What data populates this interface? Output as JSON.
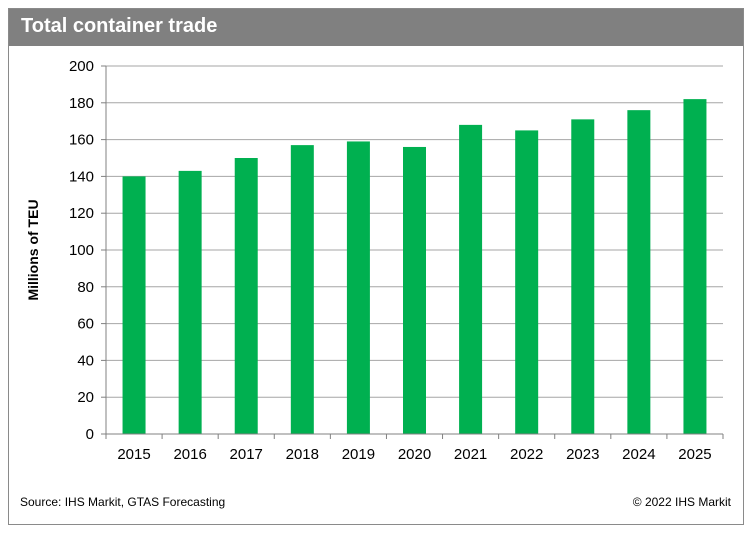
{
  "header": {
    "title": "Total container trade"
  },
  "footer": {
    "source": "Source: IHS Markit, GTAS Forecasting",
    "copyright": "© 2022 IHS Markit"
  },
  "colors": {
    "bar": "#00b050",
    "header_bg": "#808080",
    "grid": "#a6a6a6"
  },
  "chart_data": {
    "type": "bar",
    "title": "Total container trade",
    "xlabel": "",
    "ylabel": "Millions of TEU",
    "categories": [
      "2015",
      "2016",
      "2017",
      "2018",
      "2019",
      "2020",
      "2021",
      "2022",
      "2023",
      "2024",
      "2025"
    ],
    "values": [
      140,
      143,
      150,
      157,
      159,
      156,
      168,
      165,
      171,
      176,
      182
    ],
    "ylim": [
      0,
      200
    ],
    "yticks": [
      0,
      20,
      40,
      60,
      80,
      100,
      120,
      140,
      160,
      180,
      200
    ],
    "grid": true,
    "legend": "none"
  }
}
